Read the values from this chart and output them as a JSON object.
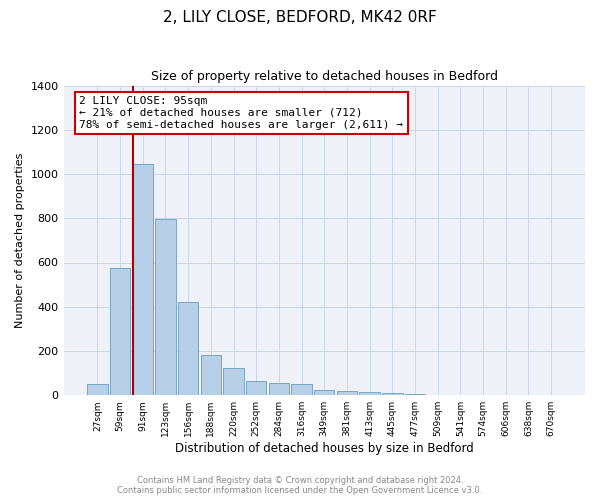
{
  "title": "2, LILY CLOSE, BEDFORD, MK42 0RF",
  "subtitle": "Size of property relative to detached houses in Bedford",
  "xlabel": "Distribution of detached houses by size in Bedford",
  "ylabel": "Number of detached properties",
  "bar_labels": [
    "27sqm",
    "59sqm",
    "91sqm",
    "123sqm",
    "156sqm",
    "188sqm",
    "220sqm",
    "252sqm",
    "284sqm",
    "316sqm",
    "349sqm",
    "381sqm",
    "413sqm",
    "445sqm",
    "477sqm",
    "509sqm",
    "541sqm",
    "574sqm",
    "606sqm",
    "638sqm",
    "670sqm"
  ],
  "bar_heights": [
    50,
    575,
    1045,
    795,
    420,
    180,
    125,
    65,
    55,
    50,
    25,
    20,
    15,
    10,
    5,
    0,
    0,
    0,
    0,
    0,
    0
  ],
  "bar_color": "#b8cfe8",
  "bar_edge_color": "#6a9cc0",
  "ylim": [
    0,
    1400
  ],
  "yticks": [
    0,
    200,
    400,
    600,
    800,
    1000,
    1200,
    1400
  ],
  "property_line_color": "#aa0000",
  "annotation_title": "2 LILY CLOSE: 95sqm",
  "annotation_line1": "← 21% of detached houses are smaller (712)",
  "annotation_line2": "78% of semi-detached houses are larger (2,611) →",
  "annotation_box_color": "#ffffff",
  "annotation_box_edge_color": "#cc0000",
  "footer_line1": "Contains HM Land Registry data © Crown copyright and database right 2024.",
  "footer_line2": "Contains public sector information licensed under the Open Government Licence v3.0.",
  "grid_color": "#c8d8e8",
  "background_color": "#eef2f8"
}
